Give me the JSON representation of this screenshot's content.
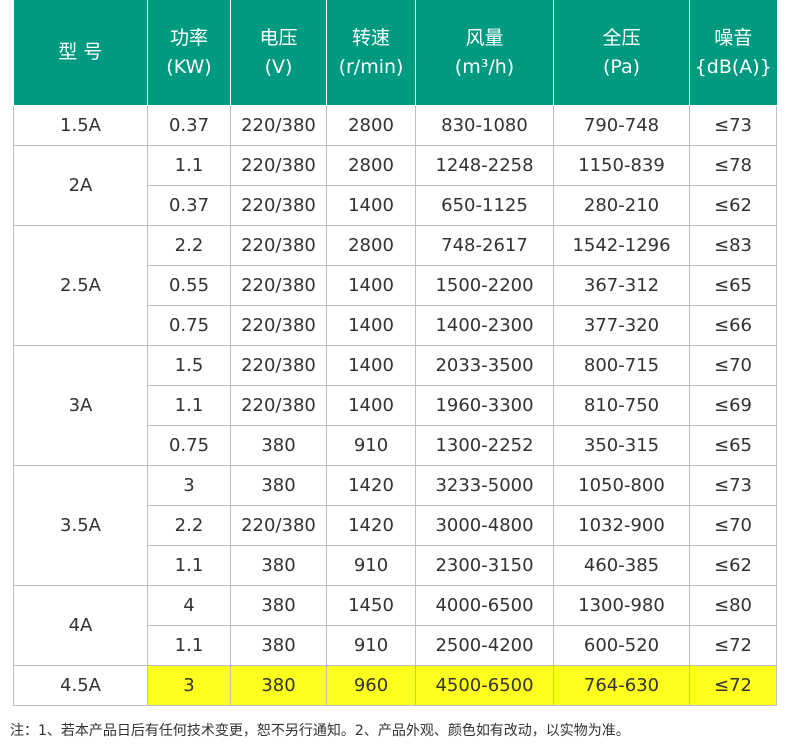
{
  "headers": [
    {
      "line1": "型  号",
      "line2": ""
    },
    {
      "line1": "功率",
      "line2": "(KW)"
    },
    {
      "line1": "电压",
      "line2": "(V)"
    },
    {
      "line1": "转速",
      "line2": "(r/min)"
    },
    {
      "line1": "风量",
      "line2": "(m³/h)"
    },
    {
      "line1": "全压",
      "line2": "(Pa)"
    },
    {
      "line1": "噪音",
      "line2": "{dB(A)}"
    }
  ],
  "models": [
    {
      "name": "1.5A",
      "rows": [
        {
          "power": "0.37",
          "voltage": "220/380",
          "speed": "2800",
          "airflow": "830-1080",
          "pressure": "790-748",
          "noise": "≤73"
        }
      ]
    },
    {
      "name": "2A",
      "rows": [
        {
          "power": "1.1",
          "voltage": "220/380",
          "speed": "2800",
          "airflow": "1248-2258",
          "pressure": "1150-839",
          "noise": "≤78"
        },
        {
          "power": "0.37",
          "voltage": "220/380",
          "speed": "1400",
          "airflow": "650-1125",
          "pressure": "280-210",
          "noise": "≤62"
        }
      ]
    },
    {
      "name": "2.5A",
      "rows": [
        {
          "power": "2.2",
          "voltage": "220/380",
          "speed": "2800",
          "airflow": "748-2617",
          "pressure": "1542-1296",
          "noise": "≤83"
        },
        {
          "power": "0.55",
          "voltage": "220/380",
          "speed": "1400",
          "airflow": "1500-2200",
          "pressure": "367-312",
          "noise": "≤65"
        },
        {
          "power": "0.75",
          "voltage": "220/380",
          "speed": "1400",
          "airflow": "1400-2300",
          "pressure": "377-320",
          "noise": "≤66"
        }
      ]
    },
    {
      "name": "3A",
      "rows": [
        {
          "power": "1.5",
          "voltage": "220/380",
          "speed": "1400",
          "airflow": "2033-3500",
          "pressure": "800-715",
          "noise": "≤70"
        },
        {
          "power": "1.1",
          "voltage": "220/380",
          "speed": "1400",
          "airflow": "1960-3300",
          "pressure": "810-750",
          "noise": "≤69"
        },
        {
          "power": "0.75",
          "voltage": "380",
          "speed": "910",
          "airflow": "1300-2252",
          "pressure": "350-315",
          "noise": "≤65"
        }
      ]
    },
    {
      "name": "3.5A",
      "rows": [
        {
          "power": "3",
          "voltage": "380",
          "speed": "1420",
          "airflow": "3233-5000",
          "pressure": "1050-800",
          "noise": "≤73"
        },
        {
          "power": "2.2",
          "voltage": "220/380",
          "speed": "1420",
          "airflow": "3000-4800",
          "pressure": "1032-900",
          "noise": "≤70"
        },
        {
          "power": "1.1",
          "voltage": "380",
          "speed": "910",
          "airflow": "2300-3150",
          "pressure": "460-385",
          "noise": "≤62"
        }
      ]
    },
    {
      "name": "4A",
      "rows": [
        {
          "power": "4",
          "voltage": "380",
          "speed": "1450",
          "airflow": "4000-6500",
          "pressure": "1300-980",
          "noise": "≤80"
        },
        {
          "power": "1.1",
          "voltage": "380",
          "speed": "910",
          "airflow": "2500-4200",
          "pressure": "600-520",
          "noise": "≤72"
        }
      ]
    },
    {
      "name": "4.5A",
      "highlight": true,
      "rows": [
        {
          "power": "3",
          "voltage": "380",
          "speed": "960",
          "airflow": "4500-6500",
          "pressure": "764-630",
          "noise": "≤72"
        }
      ]
    }
  ],
  "colors": {
    "header_bg": "#009a80",
    "highlight": "#ffff1e"
  },
  "footnote": "注：1、若本产品日后有任何技术变更，恕不另行通知。2、产品外观、颜色如有改动，以实物为准。"
}
